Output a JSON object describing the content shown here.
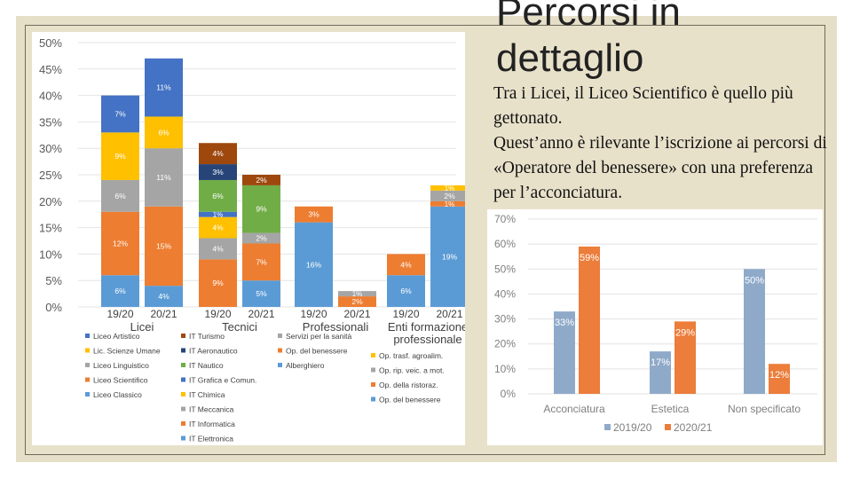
{
  "slide": {
    "title_line1": "Percorsi in",
    "title_line2": "dettaglio",
    "body": [
      "Tra i Licei, il Liceo Scientifico è quello più gettonato.",
      "Quest’anno è rilevante l’iscrizione ai percorsi di «Operatore del benessere» con una preferenza per l’acconciatura."
    ]
  },
  "colors": {
    "liceo_artistico": "#4472c4",
    "lic_scienze_umane": "#ffc000",
    "liceo_linguistico": "#a5a5a5",
    "liceo_scientifico": "#ed7d31",
    "liceo_classico": "#5b9bd5",
    "it_turismo": "#9e480e",
    "it_aeronautico": "#264478",
    "it_nautico": "#70ad47",
    "it_grafica": "#4472c4",
    "it_chimica": "#ffc000",
    "it_meccanica": "#a5a5a5",
    "it_informatica": "#ed7d31",
    "it_elettronica": "#5b9bd5",
    "op_benessere_right": "#8faac9",
    "orange_right": "#ec7d3b"
  },
  "chart_data": [
    {
      "type": "bar",
      "stacked": true,
      "y_ticks": [
        "0%",
        "5%",
        "10%",
        "15%",
        "20%",
        "25%",
        "30%",
        "35%",
        "40%",
        "45%",
        "50%"
      ],
      "ylim": [
        0,
        50
      ],
      "groups": [
        {
          "name": "Licei",
          "categories": [
            "19/20",
            "20/21"
          ]
        },
        {
          "name": "Tecnici",
          "categories": [
            "19/20",
            "20/21"
          ]
        },
        {
          "name": "Professionali",
          "categories": [
            "19/20",
            "20/21"
          ]
        },
        {
          "name": "Enti formazione professionale",
          "label_lines": [
            "Enti formazione",
            "professionale"
          ],
          "categories": [
            "19/20",
            "20/21"
          ]
        }
      ],
      "bars": [
        {
          "group": 0,
          "category": "19/20",
          "segments": [
            {
              "series": "Liceo Classico",
              "value": 6,
              "label": "6%",
              "color_key": "liceo_classico"
            },
            {
              "series": "Liceo Scientifico",
              "value": 12,
              "label": "12%",
              "color_key": "liceo_scientifico"
            },
            {
              "series": "Liceo Linguistico",
              "value": 6,
              "label": "6%",
              "color_key": "liceo_linguistico"
            },
            {
              "series": "Lic. Scienze Umane",
              "value": 9,
              "label": "9%",
              "color_key": "lic_scienze_umane"
            },
            {
              "series": "Liceo Artistico",
              "value": 7,
              "label": "7%",
              "color_key": "liceo_artistico"
            }
          ]
        },
        {
          "group": 0,
          "category": "20/21",
          "segments": [
            {
              "series": "Liceo Classico",
              "value": 4,
              "label": "4%",
              "color_key": "liceo_classico"
            },
            {
              "series": "Liceo Scientifico",
              "value": 15,
              "label": "15%",
              "color_key": "liceo_scientifico"
            },
            {
              "series": "Liceo Linguistico",
              "value": 11,
              "label": "11%",
              "color_key": "liceo_linguistico"
            },
            {
              "series": "Lic. Scienze Umane",
              "value": 6,
              "label": "6%",
              "color_key": "lic_scienze_umane"
            },
            {
              "series": "Liceo Artistico",
              "value": 11,
              "label": "11%",
              "color_key": "liceo_artistico"
            }
          ]
        },
        {
          "group": 1,
          "category": "19/20",
          "segments": [
            {
              "series": "IT Elettronica",
              "value": 0,
              "label": "",
              "color_key": "it_elettronica"
            },
            {
              "series": "IT Informatica",
              "value": 9,
              "label": "9%",
              "color_key": "it_informatica"
            },
            {
              "series": "IT Meccanica",
              "value": 4,
              "label": "4%",
              "color_key": "it_meccanica"
            },
            {
              "series": "IT Chimica",
              "value": 4,
              "label": "4%",
              "color_key": "it_chimica"
            },
            {
              "series": "IT Grafica e Comun.",
              "value": 1,
              "label": "1%",
              "color_key": "it_grafica"
            },
            {
              "series": "IT Nautico",
              "value": 6,
              "label": "6%",
              "color_key": "it_nautico"
            },
            {
              "series": "IT Aeronautico",
              "value": 3,
              "label": "3%",
              "color_key": "it_aeronautico"
            },
            {
              "series": "IT Turismo",
              "value": 4,
              "label": "4%",
              "color_key": "it_turismo"
            }
          ]
        },
        {
          "group": 1,
          "category": "20/21",
          "segments": [
            {
              "series": "IT Elettronica",
              "value": 5,
              "label": "5%",
              "color_key": "it_elettronica"
            },
            {
              "series": "IT Informatica",
              "value": 7,
              "label": "7%",
              "color_key": "it_informatica"
            },
            {
              "series": "IT Meccanica",
              "value": 2,
              "label": "2%",
              "color_key": "it_meccanica"
            },
            {
              "series": "IT Nautico",
              "value": 9,
              "label": "9%",
              "color_key": "it_nautico"
            },
            {
              "series": "IT Turismo",
              "value": 2,
              "label": "2%",
              "color_key": "it_turismo"
            }
          ]
        },
        {
          "group": 2,
          "category": "19/20",
          "segments": [
            {
              "series": "Alberghiero",
              "value": 16,
              "label": "16%",
              "color_key": "liceo_classico"
            },
            {
              "series": "Op. del benessere",
              "value": 3,
              "label": "3%",
              "color_key": "liceo_scientifico"
            }
          ]
        },
        {
          "group": 2,
          "category": "20/21",
          "segments": [
            {
              "series": "Op. del benessere",
              "value": 2,
              "label": "2%",
              "color_key": "liceo_scientifico"
            },
            {
              "series": "Servizi per la sanità",
              "value": 1,
              "label": "1%",
              "color_key": "liceo_linguistico"
            }
          ]
        },
        {
          "group": 3,
          "category": "19/20",
          "segments": [
            {
              "series": "Op. del benessere",
              "value": 6,
              "label": "6%",
              "color_key": "liceo_classico"
            },
            {
              "series": "Op. della ristoraz.",
              "value": 4,
              "label": "4%",
              "color_key": "liceo_scientifico"
            }
          ]
        },
        {
          "group": 3,
          "category": "20/21",
          "segments": [
            {
              "series": "Op. del benessere",
              "value": 19,
              "label": "19%",
              "color_key": "liceo_classico"
            },
            {
              "series": "Op. della ristoraz.",
              "value": 1,
              "label": "1%",
              "color_key": "liceo_scientifico"
            },
            {
              "series": "Op. rip. veic. a mot.",
              "value": 2,
              "label": "2%",
              "color_key": "liceo_linguistico"
            },
            {
              "series": "Op. trasf. agroalim.",
              "value": 1,
              "label": "1%",
              "color_key": "lic_scienze_umane"
            }
          ]
        }
      ],
      "legends": [
        {
          "group": 0,
          "items": [
            {
              "label": "Liceo Artistico",
              "color_key": "liceo_artistico"
            },
            {
              "label": "Lic. Scienze Umane",
              "color_key": "lic_scienze_umane"
            },
            {
              "label": "Liceo Linguistico",
              "color_key": "liceo_linguistico"
            },
            {
              "label": "Liceo Scientifico",
              "color_key": "liceo_scientifico"
            },
            {
              "label": "Liceo Classico",
              "color_key": "liceo_classico"
            }
          ]
        },
        {
          "group": 1,
          "items": [
            {
              "label": "IT Turismo",
              "color_key": "it_turismo"
            },
            {
              "label": "IT Aeronautico",
              "color_key": "it_aeronautico"
            },
            {
              "label": "IT Nautico",
              "color_key": "it_nautico"
            },
            {
              "label": "IT Grafica e Comun.",
              "color_key": "it_grafica"
            },
            {
              "label": "IT Chimica",
              "color_key": "it_chimica"
            },
            {
              "label": "IT Meccanica",
              "color_key": "it_meccanica"
            },
            {
              "label": "IT Informatica",
              "color_key": "it_informatica"
            },
            {
              "label": "IT Elettronica",
              "color_key": "it_elettronica"
            }
          ]
        },
        {
          "group": 2,
          "items": [
            {
              "label": "Servizi per la sanità",
              "color_key": "liceo_linguistico"
            },
            {
              "label": "Op. del benessere",
              "color_key": "liceo_scientifico"
            },
            {
              "label": "Alberghiero",
              "color_key": "liceo_classico"
            }
          ]
        },
        {
          "group": 3,
          "items": [
            {
              "label": "Op. trasf. agroalim.",
              "color_key": "lic_scienze_umane"
            },
            {
              "label": "Op. rip. veic. a mot.",
              "color_key": "liceo_linguistico"
            },
            {
              "label": "Op. della ristoraz.",
              "color_key": "liceo_scientifico"
            },
            {
              "label": "Op. del benessere",
              "color_key": "liceo_classico"
            }
          ]
        }
      ]
    },
    {
      "type": "bar",
      "y_ticks": [
        "0%",
        "10%",
        "20%",
        "30%",
        "40%",
        "50%",
        "60%",
        "70%"
      ],
      "ylim": [
        0,
        70
      ],
      "categories": [
        "Acconciatura",
        "Estetica",
        "Non specificato"
      ],
      "series": [
        {
          "name": "2019/20",
          "color_key": "op_benessere_right",
          "values": [
            33,
            17,
            50
          ],
          "labels": [
            "33%",
            "17%",
            "50%"
          ]
        },
        {
          "name": "2020/21",
          "color_key": "orange_right",
          "values": [
            59,
            29,
            12
          ],
          "labels": [
            "59%",
            "29%",
            "12%"
          ]
        }
      ]
    }
  ]
}
